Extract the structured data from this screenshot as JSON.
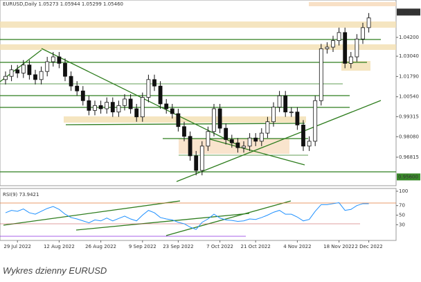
{
  "chart_data": {
    "type": "candlestick",
    "title": "EURUSD,Daily  1.05273 1.05944 1.05299 1.05460",
    "caption": "Wykres dzienny EURUSD",
    "categories": [
      null,
      null,
      "29 Jul 2022",
      null,
      null,
      null,
      null,
      null,
      null,
      "12 Aug 2022",
      null,
      null,
      null,
      null,
      null,
      null,
      "26 Aug 2022",
      null,
      null,
      null,
      null,
      null,
      null,
      "9 Sep 2022",
      null,
      null,
      null,
      null,
      null,
      "23 Sep 2022",
      null,
      null,
      null,
      null,
      null,
      null,
      "7 Oct 2022",
      null,
      null,
      null,
      null,
      null,
      "21 Oct 2022",
      null,
      null,
      null,
      null,
      null,
      null,
      "4 Nov 2022",
      null,
      null,
      null,
      null,
      null,
      null,
      "18 Nov 2022",
      null,
      null,
      null,
      null,
      "2 Dec 2022"
    ],
    "open": [
      1.016,
      1.018,
      1.022,
      1.02,
      1.025,
      1.019,
      1.016,
      1.021,
      1.027,
      1.03,
      1.026,
      1.018,
      1.012,
      1.009,
      1.003,
      0.997,
      1.0,
      0.998,
      1.002,
      0.996,
      1.0,
      1.004,
      0.998,
      0.993,
      1.005,
      1.016,
      1.012,
      1.001,
      0.998,
      0.995,
      0.987,
      0.981,
      0.969,
      0.96,
      0.975,
      0.984,
      0.998,
      0.986,
      0.979,
      0.977,
      0.974,
      0.975,
      0.98,
      0.978,
      0.983,
      0.99,
      0.999,
      1.006,
      0.996,
      0.996,
      0.988,
      0.975,
      0.978,
      1.003,
      1.035,
      1.036,
      1.04,
      1.045,
      1.026,
      1.03,
      1.041,
      1.048
    ],
    "high": [
      1.021,
      1.025,
      1.025,
      1.028,
      1.028,
      1.022,
      1.024,
      1.03,
      1.033,
      1.033,
      1.029,
      1.021,
      1.015,
      1.012,
      1.006,
      1.003,
      1.003,
      1.005,
      1.005,
      1.003,
      1.007,
      1.007,
      1.001,
      1.008,
      1.019,
      1.019,
      1.015,
      1.004,
      1.001,
      0.998,
      0.99,
      0.984,
      0.972,
      0.978,
      0.987,
      1.001,
      1.001,
      0.989,
      0.982,
      0.98,
      0.978,
      0.983,
      0.983,
      0.986,
      0.993,
      1.002,
      1.009,
      1.009,
      0.999,
      0.999,
      0.991,
      0.981,
      1.006,
      1.038,
      1.039,
      1.043,
      1.048,
      1.048,
      1.033,
      1.044,
      1.051,
      1.057
    ],
    "low": [
      1.013,
      1.015,
      1.017,
      1.017,
      1.016,
      1.013,
      1.013,
      1.018,
      1.024,
      1.023,
      1.015,
      1.009,
      1.006,
      1.0,
      0.994,
      0.994,
      0.995,
      0.995,
      0.993,
      0.993,
      0.997,
      0.995,
      0.99,
      0.99,
      1.002,
      1.009,
      0.998,
      0.995,
      0.992,
      0.984,
      0.978,
      0.966,
      0.957,
      0.957,
      0.972,
      0.981,
      0.983,
      0.976,
      0.974,
      0.971,
      0.971,
      0.972,
      0.975,
      0.975,
      0.98,
      0.987,
      0.996,
      0.993,
      0.993,
      0.985,
      0.972,
      0.972,
      0.975,
      1.0,
      1.032,
      1.033,
      1.037,
      1.023,
      1.023,
      1.027,
      1.038,
      1.045
    ],
    "close": [
      1.018,
      1.022,
      1.02,
      1.025,
      1.019,
      1.016,
      1.021,
      1.027,
      1.03,
      1.026,
      1.018,
      1.012,
      1.009,
      1.003,
      0.997,
      1.0,
      0.998,
      1.002,
      0.996,
      1.0,
      1.004,
      0.998,
      0.993,
      1.005,
      1.016,
      1.012,
      1.001,
      0.998,
      0.995,
      0.987,
      0.981,
      0.969,
      0.96,
      0.975,
      0.984,
      0.998,
      0.986,
      0.979,
      0.977,
      0.974,
      0.975,
      0.98,
      0.978,
      0.983,
      0.99,
      0.999,
      1.006,
      0.996,
      0.996,
      0.988,
      0.975,
      0.978,
      1.003,
      1.035,
      1.036,
      1.04,
      1.045,
      1.026,
      1.03,
      1.041,
      1.048,
      1.054
    ],
    "ylim": [
      0.9506,
      1.0629
    ],
    "yticks": [
      {
        "value": 1.042,
        "label": "1.04200"
      },
      {
        "value": 1.0304,
        "label": "1.03040"
      },
      {
        "value": 1.0179,
        "label": "1.01790"
      },
      {
        "value": 1.0054,
        "label": "1.00540"
      },
      {
        "value": 0.99315,
        "label": "0.99315"
      },
      {
        "value": 0.9808,
        "label": "0.98080"
      },
      {
        "value": 0.96815,
        "label": "0.96815"
      }
    ],
    "current_price": {
      "value": 1.0576,
      "label": "1.05760"
    },
    "level_label": {
      "value": 0.956,
      "label": "0.95600"
    },
    "rsi": {
      "title": "RSI(9) 73.9421",
      "color": "#1e90ff",
      "values": [
        55,
        60,
        58,
        63,
        55,
        52,
        58,
        64,
        68,
        62,
        52,
        45,
        42,
        38,
        34,
        40,
        38,
        44,
        38,
        43,
        48,
        42,
        38,
        50,
        60,
        55,
        45,
        42,
        40,
        35,
        32,
        25,
        20,
        35,
        42,
        52,
        44,
        40,
        39,
        37,
        38,
        42,
        41,
        45,
        50,
        56,
        60,
        52,
        52,
        46,
        38,
        41,
        58,
        72,
        72,
        74,
        76,
        60,
        62,
        70,
        74,
        74
      ],
      "ylim": [
        0,
        100
      ],
      "yticks": [
        100,
        70,
        50,
        30
      ]
    }
  }
}
